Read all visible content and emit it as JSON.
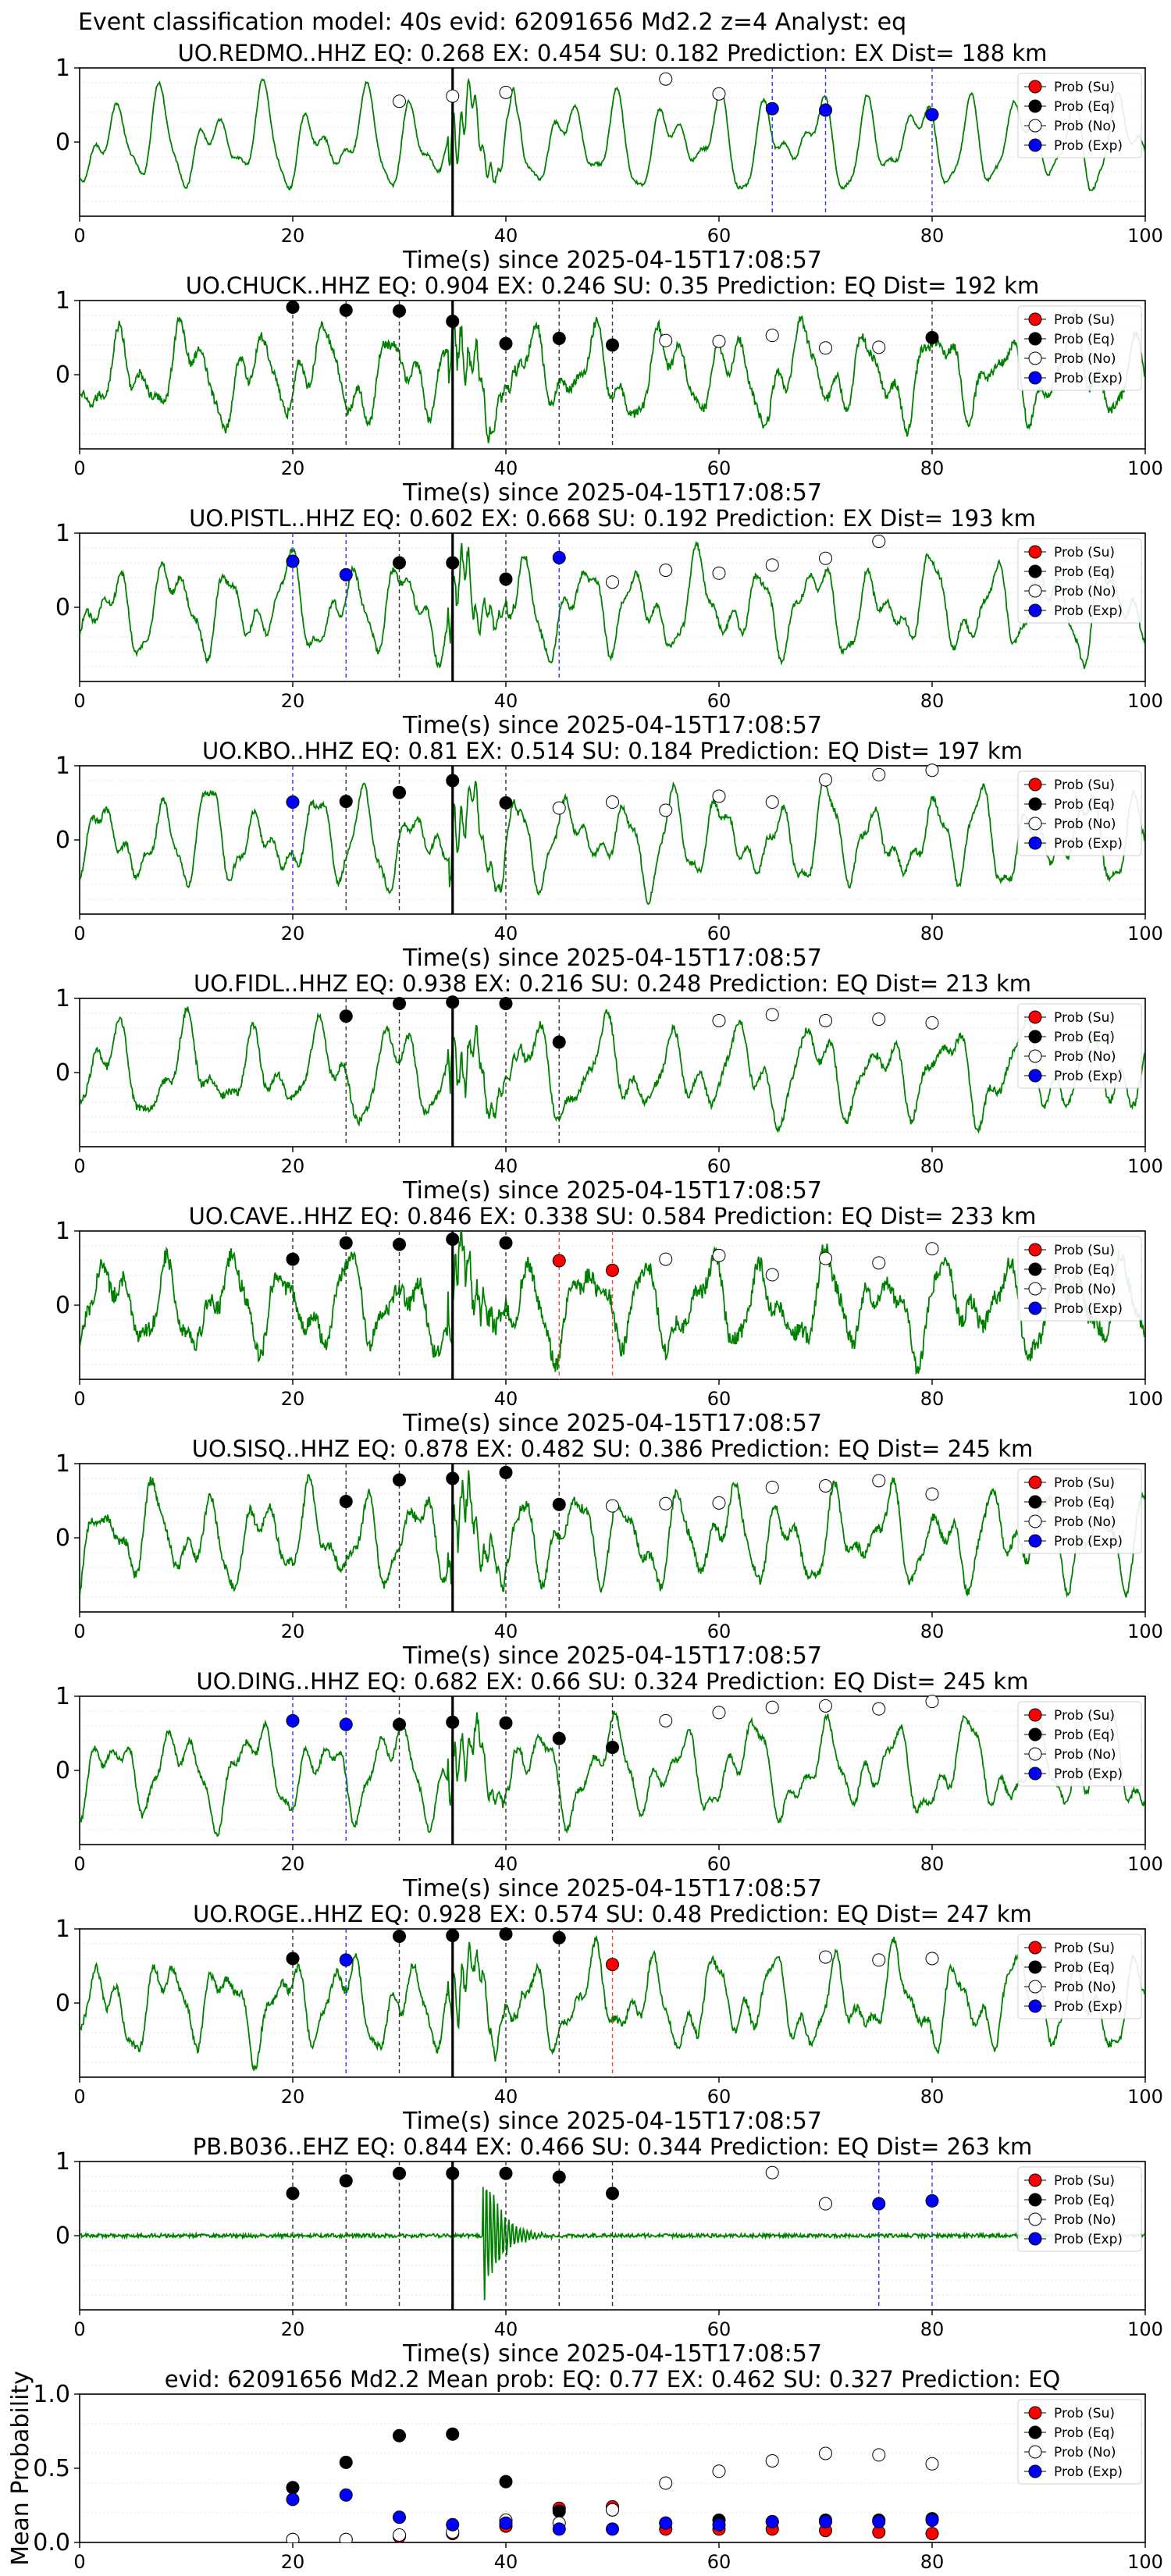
{
  "suptitle": "Event classification model: 40s evid: 62091656 Md2.2 z=4 Analyst: eq",
  "colors": {
    "waveform": "#008000",
    "su": "#ff0000",
    "eq": "#000000",
    "no": "#ffffff",
    "exp": "#0000ff",
    "onset": "#000000"
  },
  "legend_entries": [
    "Prob (Su)",
    "Prob (Eq)",
    "Prob (No)",
    "Prob (Exp)"
  ],
  "chart_data": [
    {
      "type": "line",
      "station": "UO.REDMO..HHZ",
      "title": "UO.REDMO..HHZ   EQ: 0.268  EX: 0.454  SU: 0.182   Prediction: EX    Dist= 188 km",
      "xlabel": "Time(s) since 2025-04-15T17:08:57",
      "xlim": [
        0,
        100
      ],
      "ylim": [
        -1,
        1
      ],
      "xticks": [
        0,
        20,
        40,
        60,
        80,
        100
      ],
      "yticks": [
        1,
        0
      ],
      "grid": "y",
      "legend": "top-right",
      "onset": 35,
      "noise": 0.04,
      "points": [
        {
          "x": 30,
          "y": 0.55,
          "cls": "no"
        },
        {
          "x": 35,
          "y": 0.62,
          "cls": "no"
        },
        {
          "x": 40,
          "y": 0.67,
          "cls": "no"
        },
        {
          "x": 55,
          "y": 0.85,
          "cls": "no"
        },
        {
          "x": 60,
          "y": 0.65,
          "cls": "no"
        },
        {
          "x": 65,
          "y": 0.45,
          "cls": "exp"
        },
        {
          "x": 70,
          "y": 0.43,
          "cls": "exp"
        },
        {
          "x": 80,
          "y": 0.37,
          "cls": "exp"
        }
      ]
    },
    {
      "type": "line",
      "station": "UO.CHUCK..HHZ",
      "title": "UO.CHUCK..HHZ   EQ: 0.904  EX: 0.246  SU: 0.35   Prediction: EQ    Dist= 192 km",
      "xlabel": "Time(s) since 2025-04-15T17:08:57",
      "xlim": [
        0,
        100
      ],
      "ylim": [
        -1,
        1
      ],
      "xticks": [
        0,
        20,
        40,
        60,
        80,
        100
      ],
      "yticks": [
        1,
        0
      ],
      "grid": "y",
      "legend": "top-right",
      "onset": 35,
      "noise": 0.12,
      "points": [
        {
          "x": 20,
          "y": 0.91,
          "cls": "eq"
        },
        {
          "x": 25,
          "y": 0.87,
          "cls": "eq"
        },
        {
          "x": 30,
          "y": 0.86,
          "cls": "eq"
        },
        {
          "x": 35,
          "y": 0.72,
          "cls": "eq"
        },
        {
          "x": 40,
          "y": 0.42,
          "cls": "eq"
        },
        {
          "x": 45,
          "y": 0.49,
          "cls": "eq"
        },
        {
          "x": 50,
          "y": 0.4,
          "cls": "eq"
        },
        {
          "x": 55,
          "y": 0.46,
          "cls": "no"
        },
        {
          "x": 60,
          "y": 0.45,
          "cls": "no"
        },
        {
          "x": 65,
          "y": 0.53,
          "cls": "no"
        },
        {
          "x": 70,
          "y": 0.36,
          "cls": "no"
        },
        {
          "x": 75,
          "y": 0.37,
          "cls": "no"
        },
        {
          "x": 80,
          "y": 0.5,
          "cls": "eq"
        }
      ]
    },
    {
      "type": "line",
      "station": "UO.PISTL..HHZ",
      "title": "UO.PISTL..HHZ   EQ: 0.602  EX: 0.668  SU: 0.192   Prediction: EX    Dist= 193 km",
      "xlabel": "Time(s) since 2025-04-15T17:08:57",
      "xlim": [
        0,
        100
      ],
      "ylim": [
        -1,
        1
      ],
      "xticks": [
        0,
        20,
        40,
        60,
        80,
        100
      ],
      "yticks": [
        1,
        0
      ],
      "grid": "y",
      "legend": "top-right",
      "onset": 35,
      "noise": 0.08,
      "points": [
        {
          "x": 20,
          "y": 0.62,
          "cls": "exp"
        },
        {
          "x": 25,
          "y": 0.44,
          "cls": "exp"
        },
        {
          "x": 30,
          "y": 0.6,
          "cls": "eq"
        },
        {
          "x": 35,
          "y": 0.6,
          "cls": "eq"
        },
        {
          "x": 40,
          "y": 0.38,
          "cls": "eq"
        },
        {
          "x": 45,
          "y": 0.67,
          "cls": "exp"
        },
        {
          "x": 50,
          "y": 0.34,
          "cls": "no"
        },
        {
          "x": 55,
          "y": 0.5,
          "cls": "no"
        },
        {
          "x": 60,
          "y": 0.46,
          "cls": "no"
        },
        {
          "x": 65,
          "y": 0.57,
          "cls": "no"
        },
        {
          "x": 70,
          "y": 0.66,
          "cls": "no"
        },
        {
          "x": 75,
          "y": 0.89,
          "cls": "no"
        }
      ]
    },
    {
      "type": "line",
      "station": "UO.KBO..HHZ",
      "title": "UO.KBO..HHZ   EQ: 0.81  EX: 0.514  SU: 0.184   Prediction: EQ    Dist= 197 km",
      "xlabel": "Time(s) since 2025-04-15T17:08:57",
      "xlim": [
        0,
        100
      ],
      "ylim": [
        -1,
        1
      ],
      "xticks": [
        0,
        20,
        40,
        60,
        80,
        100
      ],
      "yticks": [
        1,
        0
      ],
      "grid": "y",
      "legend": "top-right",
      "onset": 35,
      "noise": 0.08,
      "points": [
        {
          "x": 20,
          "y": 0.51,
          "cls": "exp"
        },
        {
          "x": 25,
          "y": 0.52,
          "cls": "eq"
        },
        {
          "x": 30,
          "y": 0.64,
          "cls": "eq"
        },
        {
          "x": 35,
          "y": 0.8,
          "cls": "eq"
        },
        {
          "x": 40,
          "y": 0.5,
          "cls": "eq"
        },
        {
          "x": 45,
          "y": 0.43,
          "cls": "no"
        },
        {
          "x": 50,
          "y": 0.51,
          "cls": "no"
        },
        {
          "x": 55,
          "y": 0.4,
          "cls": "no"
        },
        {
          "x": 60,
          "y": 0.59,
          "cls": "no"
        },
        {
          "x": 65,
          "y": 0.51,
          "cls": "no"
        },
        {
          "x": 70,
          "y": 0.81,
          "cls": "no"
        },
        {
          "x": 75,
          "y": 0.88,
          "cls": "no"
        },
        {
          "x": 80,
          "y": 0.94,
          "cls": "no"
        }
      ]
    },
    {
      "type": "line",
      "station": "UO.FIDL..HHZ",
      "title": "UO.FIDL..HHZ   EQ: 0.938  EX: 0.216  SU: 0.248   Prediction: EQ    Dist= 213 km",
      "xlabel": "Time(s) since 2025-04-15T17:08:57",
      "xlim": [
        0,
        100
      ],
      "ylim": [
        -1,
        1
      ],
      "xticks": [
        0,
        20,
        40,
        60,
        80,
        100
      ],
      "yticks": [
        1,
        0
      ],
      "grid": "y",
      "legend": "top-right",
      "onset": 35,
      "noise": 0.1,
      "points": [
        {
          "x": 25,
          "y": 0.76,
          "cls": "eq"
        },
        {
          "x": 30,
          "y": 0.93,
          "cls": "eq"
        },
        {
          "x": 35,
          "y": 0.95,
          "cls": "eq"
        },
        {
          "x": 40,
          "y": 0.93,
          "cls": "eq"
        },
        {
          "x": 45,
          "y": 0.41,
          "cls": "eq"
        },
        {
          "x": 60,
          "y": 0.7,
          "cls": "no"
        },
        {
          "x": 65,
          "y": 0.78,
          "cls": "no"
        },
        {
          "x": 70,
          "y": 0.7,
          "cls": "no"
        },
        {
          "x": 75,
          "y": 0.72,
          "cls": "no"
        },
        {
          "x": 80,
          "y": 0.67,
          "cls": "no"
        }
      ]
    },
    {
      "type": "line",
      "station": "UO.CAVE..HHZ",
      "title": "UO.CAVE..HHZ   EQ: 0.846  EX: 0.338  SU: 0.584   Prediction: EQ    Dist= 233 km",
      "xlabel": "Time(s) since 2025-04-15T17:08:57",
      "xlim": [
        0,
        100
      ],
      "ylim": [
        -1,
        1
      ],
      "xticks": [
        0,
        20,
        40,
        60,
        80,
        100
      ],
      "yticks": [
        1,
        0
      ],
      "grid": "y",
      "legend": "top-right",
      "onset": 35,
      "noise": 0.22,
      "points": [
        {
          "x": 20,
          "y": 0.62,
          "cls": "eq"
        },
        {
          "x": 25,
          "y": 0.84,
          "cls": "eq"
        },
        {
          "x": 30,
          "y": 0.82,
          "cls": "eq"
        },
        {
          "x": 35,
          "y": 0.89,
          "cls": "eq"
        },
        {
          "x": 40,
          "y": 0.84,
          "cls": "eq"
        },
        {
          "x": 45,
          "y": 0.6,
          "cls": "su"
        },
        {
          "x": 50,
          "y": 0.47,
          "cls": "su"
        },
        {
          "x": 55,
          "y": 0.62,
          "cls": "no"
        },
        {
          "x": 60,
          "y": 0.67,
          "cls": "no"
        },
        {
          "x": 65,
          "y": 0.41,
          "cls": "no"
        },
        {
          "x": 70,
          "y": 0.63,
          "cls": "no"
        },
        {
          "x": 75,
          "y": 0.57,
          "cls": "no"
        },
        {
          "x": 80,
          "y": 0.76,
          "cls": "no"
        }
      ]
    },
    {
      "type": "line",
      "station": "UO.SISQ..HHZ",
      "title": "UO.SISQ..HHZ   EQ: 0.878  EX: 0.482  SU: 0.386   Prediction: EQ    Dist= 245 km",
      "xlabel": "Time(s) since 2025-04-15T17:08:57",
      "xlim": [
        0,
        100
      ],
      "ylim": [
        -1,
        1
      ],
      "xticks": [
        0,
        20,
        40,
        60,
        80,
        100
      ],
      "yticks": [
        1,
        0
      ],
      "grid": "y",
      "legend": "top-right",
      "onset": 35,
      "noise": 0.12,
      "points": [
        {
          "x": 25,
          "y": 0.49,
          "cls": "eq"
        },
        {
          "x": 30,
          "y": 0.78,
          "cls": "eq"
        },
        {
          "x": 35,
          "y": 0.8,
          "cls": "eq"
        },
        {
          "x": 40,
          "y": 0.88,
          "cls": "eq"
        },
        {
          "x": 45,
          "y": 0.45,
          "cls": "eq"
        },
        {
          "x": 50,
          "y": 0.43,
          "cls": "no"
        },
        {
          "x": 55,
          "y": 0.46,
          "cls": "no"
        },
        {
          "x": 60,
          "y": 0.47,
          "cls": "no"
        },
        {
          "x": 65,
          "y": 0.68,
          "cls": "no"
        },
        {
          "x": 70,
          "y": 0.7,
          "cls": "no"
        },
        {
          "x": 75,
          "y": 0.77,
          "cls": "no"
        },
        {
          "x": 80,
          "y": 0.59,
          "cls": "no"
        }
      ]
    },
    {
      "type": "line",
      "station": "UO.DING..HHZ",
      "title": "UO.DING..HHZ   EQ: 0.682  EX: 0.66  SU: 0.324   Prediction: EQ    Dist= 245 km",
      "xlabel": "Time(s) since 2025-04-15T17:08:57",
      "xlim": [
        0,
        100
      ],
      "ylim": [
        -1,
        1
      ],
      "xticks": [
        0,
        20,
        40,
        60,
        80,
        100
      ],
      "yticks": [
        1,
        0
      ],
      "grid": "y",
      "legend": "top-right",
      "onset": 35,
      "noise": 0.08,
      "points": [
        {
          "x": 20,
          "y": 0.67,
          "cls": "exp"
        },
        {
          "x": 25,
          "y": 0.62,
          "cls": "exp"
        },
        {
          "x": 30,
          "y": 0.62,
          "cls": "eq"
        },
        {
          "x": 35,
          "y": 0.65,
          "cls": "eq"
        },
        {
          "x": 40,
          "y": 0.64,
          "cls": "eq"
        },
        {
          "x": 45,
          "y": 0.43,
          "cls": "eq"
        },
        {
          "x": 50,
          "y": 0.31,
          "cls": "eq"
        },
        {
          "x": 55,
          "y": 0.67,
          "cls": "no"
        },
        {
          "x": 60,
          "y": 0.78,
          "cls": "no"
        },
        {
          "x": 65,
          "y": 0.85,
          "cls": "no"
        },
        {
          "x": 70,
          "y": 0.87,
          "cls": "no"
        },
        {
          "x": 75,
          "y": 0.83,
          "cls": "no"
        },
        {
          "x": 80,
          "y": 0.93,
          "cls": "no"
        }
      ]
    },
    {
      "type": "line",
      "station": "UO.ROGE..HHZ",
      "title": "UO.ROGE..HHZ   EQ: 0.928  EX: 0.574  SU: 0.48   Prediction: EQ    Dist= 247 km",
      "xlabel": "Time(s) since 2025-04-15T17:08:57",
      "xlim": [
        0,
        100
      ],
      "ylim": [
        -1,
        1
      ],
      "xticks": [
        0,
        20,
        40,
        60,
        80,
        100
      ],
      "yticks": [
        1,
        0
      ],
      "grid": "y",
      "legend": "top-right",
      "onset": 35,
      "noise": 0.1,
      "points": [
        {
          "x": 20,
          "y": 0.6,
          "cls": "eq"
        },
        {
          "x": 25,
          "y": 0.58,
          "cls": "exp"
        },
        {
          "x": 30,
          "y": 0.9,
          "cls": "eq"
        },
        {
          "x": 35,
          "y": 0.91,
          "cls": "eq"
        },
        {
          "x": 40,
          "y": 0.93,
          "cls": "eq"
        },
        {
          "x": 45,
          "y": 0.88,
          "cls": "eq"
        },
        {
          "x": 50,
          "y": 0.52,
          "cls": "su"
        },
        {
          "x": 70,
          "y": 0.62,
          "cls": "no"
        },
        {
          "x": 75,
          "y": 0.58,
          "cls": "no"
        },
        {
          "x": 80,
          "y": 0.6,
          "cls": "no"
        }
      ]
    },
    {
      "type": "line",
      "station": "PB.B036..EHZ",
      "title": "PB.B036..EHZ   EQ: 0.844  EX: 0.466  SU: 0.344   Prediction: EQ    Dist= 263 km",
      "xlabel": "Time(s) since 2025-04-15T17:08:57",
      "xlim": [
        0,
        100
      ],
      "ylim": [
        -1,
        1
      ],
      "xticks": [
        0,
        20,
        40,
        60,
        80,
        100
      ],
      "yticks": [
        1,
        0
      ],
      "grid": "y",
      "legend": "top-right",
      "onset": 35,
      "noise": 0.02,
      "points": [
        {
          "x": 20,
          "y": 0.57,
          "cls": "eq"
        },
        {
          "x": 25,
          "y": 0.74,
          "cls": "eq"
        },
        {
          "x": 30,
          "y": 0.84,
          "cls": "eq"
        },
        {
          "x": 35,
          "y": 0.84,
          "cls": "eq"
        },
        {
          "x": 40,
          "y": 0.84,
          "cls": "eq"
        },
        {
          "x": 45,
          "y": 0.79,
          "cls": "eq"
        },
        {
          "x": 50,
          "y": 0.57,
          "cls": "eq"
        },
        {
          "x": 65,
          "y": 0.85,
          "cls": "no"
        },
        {
          "x": 70,
          "y": 0.43,
          "cls": "no"
        },
        {
          "x": 75,
          "y": 0.43,
          "cls": "exp"
        },
        {
          "x": 80,
          "y": 0.47,
          "cls": "exp"
        }
      ]
    },
    {
      "type": "scatter",
      "title": "evid: 62091656  Md2.2   Mean prob:   EQ: 0.77  EX: 0.462  SU: 0.327   Prediction: EQ",
      "ylabel": "Mean Probability",
      "xlim": [
        0,
        100
      ],
      "ylim": [
        0,
        1
      ],
      "xticks": [
        0,
        20,
        40,
        60,
        80,
        100
      ],
      "yticks": [
        1.0,
        0.5,
        0.0
      ],
      "ytick_labels": [
        "1.0",
        "0.5",
        "0.0"
      ],
      "grid": "y",
      "legend": "top-right",
      "x": [
        20,
        25,
        30,
        35,
        40,
        45,
        50,
        55,
        60,
        65,
        70,
        75,
        80
      ],
      "series": [
        {
          "name": "Prob (Su)",
          "cls": "su",
          "values": [
            0.02,
            0.02,
            0.04,
            0.06,
            0.11,
            0.23,
            0.24,
            0.09,
            0.09,
            0.09,
            0.08,
            0.07,
            0.06
          ]
        },
        {
          "name": "Prob (Eq)",
          "cls": "eq",
          "values": [
            0.37,
            0.54,
            0.72,
            0.73,
            0.41,
            0.21,
            0.22,
            0.13,
            0.15,
            0.14,
            0.15,
            0.15,
            0.16
          ]
        },
        {
          "name": "Prob (No)",
          "cls": "no",
          "values": [
            0.02,
            0.02,
            0.05,
            0.07,
            0.15,
            0.13,
            0.22,
            0.4,
            0.48,
            0.55,
            0.6,
            0.59,
            0.53
          ]
        },
        {
          "name": "Prob (Exp)",
          "cls": "exp",
          "values": [
            0.29,
            0.32,
            0.17,
            0.12,
            0.13,
            0.09,
            0.09,
            0.13,
            0.12,
            0.14,
            0.14,
            0.14,
            0.15
          ]
        }
      ]
    }
  ]
}
